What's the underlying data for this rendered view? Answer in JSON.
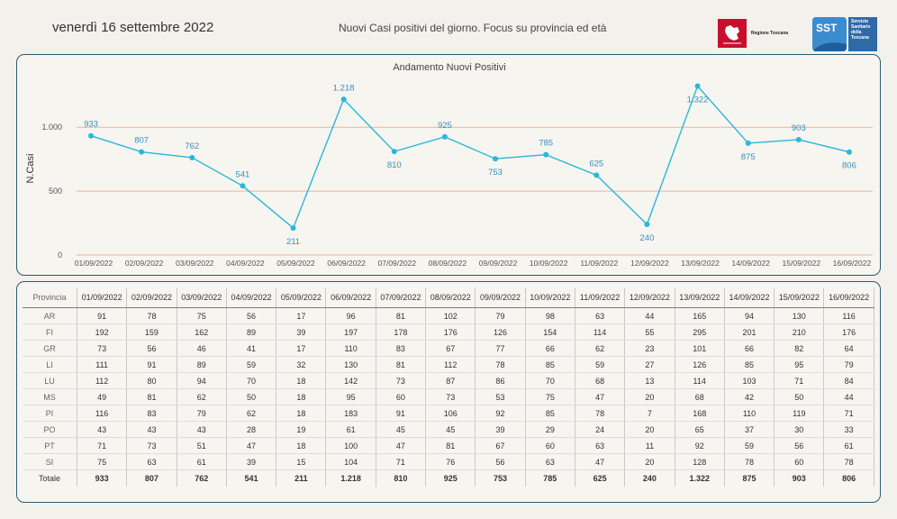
{
  "header": {
    "date": "venerdì 16 settembre 2022",
    "subtitle": "Nuovi Casi positivi del giorno. Focus su provincia ed età",
    "logo_rt_text": "Regione Toscana",
    "logo_sst_text": "Servizio Sanitario della Toscana",
    "logo_sst_mark": "SST"
  },
  "chart_data": {
    "type": "line",
    "title": "Andamento Nuovi Positivi",
    "ylabel": "N.Casi",
    "xlabel": "",
    "ylim": [
      0,
      1400
    ],
    "yticks": [
      0,
      500,
      1000
    ],
    "ytick_labels": [
      "0",
      "500",
      "1.000"
    ],
    "grid": true,
    "categories": [
      "01/09/2022",
      "02/09/2022",
      "03/09/2022",
      "04/09/2022",
      "05/09/2022",
      "06/09/2022",
      "07/09/2022",
      "08/09/2022",
      "09/09/2022",
      "10/09/2022",
      "11/09/2022",
      "12/09/2022",
      "13/09/2022",
      "14/09/2022",
      "15/09/2022",
      "16/09/2022"
    ],
    "values": [
      933,
      807,
      762,
      541,
      211,
      1218,
      810,
      925,
      753,
      785,
      625,
      240,
      1322,
      875,
      903,
      806
    ],
    "data_labels": [
      "933",
      "807",
      "762",
      "541",
      "211",
      "1.218",
      "810",
      "925",
      "753",
      "785",
      "625",
      "240",
      "1.322",
      "875",
      "903",
      "806"
    ],
    "label_positions": [
      "above",
      "above",
      "above",
      "above",
      "below",
      "above",
      "below",
      "above",
      "below",
      "above",
      "above",
      "below",
      "below",
      "below",
      "above",
      "below"
    ],
    "line_color": "#2ab7d8",
    "label_color": "#3a8fc0",
    "grid_color": "#e2b89a"
  },
  "table": {
    "header_label": "Provincia",
    "dates": [
      "01/09/2022",
      "02/09/2022",
      "03/09/2022",
      "04/09/2022",
      "05/09/2022",
      "06/09/2022",
      "07/09/2022",
      "08/09/2022",
      "09/09/2022",
      "10/09/2022",
      "11/09/2022",
      "12/09/2022",
      "13/09/2022",
      "14/09/2022",
      "15/09/2022",
      "16/09/2022"
    ],
    "rows": [
      {
        "prov": "AR",
        "values": [
          "91",
          "78",
          "75",
          "56",
          "17",
          "96",
          "81",
          "102",
          "79",
          "98",
          "63",
          "44",
          "165",
          "94",
          "130",
          "116"
        ]
      },
      {
        "prov": "FI",
        "values": [
          "192",
          "159",
          "162",
          "89",
          "39",
          "197",
          "178",
          "176",
          "126",
          "154",
          "114",
          "55",
          "295",
          "201",
          "210",
          "176"
        ]
      },
      {
        "prov": "GR",
        "values": [
          "73",
          "56",
          "46",
          "41",
          "17",
          "110",
          "83",
          "67",
          "77",
          "66",
          "62",
          "23",
          "101",
          "66",
          "82",
          "64"
        ]
      },
      {
        "prov": "LI",
        "values": [
          "111",
          "91",
          "89",
          "59",
          "32",
          "130",
          "81",
          "112",
          "78",
          "85",
          "59",
          "27",
          "126",
          "85",
          "95",
          "79"
        ]
      },
      {
        "prov": "LU",
        "values": [
          "112",
          "80",
          "94",
          "70",
          "18",
          "142",
          "73",
          "87",
          "86",
          "70",
          "68",
          "13",
          "114",
          "103",
          "71",
          "84"
        ]
      },
      {
        "prov": "MS",
        "values": [
          "49",
          "81",
          "62",
          "50",
          "18",
          "95",
          "60",
          "73",
          "53",
          "75",
          "47",
          "20",
          "68",
          "42",
          "50",
          "44"
        ]
      },
      {
        "prov": "PI",
        "values": [
          "116",
          "83",
          "79",
          "62",
          "18",
          "183",
          "91",
          "106",
          "92",
          "85",
          "78",
          "7",
          "168",
          "110",
          "119",
          "71"
        ]
      },
      {
        "prov": "PO",
        "values": [
          "43",
          "43",
          "43",
          "28",
          "19",
          "61",
          "45",
          "45",
          "39",
          "29",
          "24",
          "20",
          "65",
          "37",
          "30",
          "33"
        ]
      },
      {
        "prov": "PT",
        "values": [
          "71",
          "73",
          "51",
          "47",
          "18",
          "100",
          "47",
          "81",
          "67",
          "60",
          "63",
          "11",
          "92",
          "59",
          "56",
          "61"
        ]
      },
      {
        "prov": "SI",
        "values": [
          "75",
          "63",
          "61",
          "39",
          "15",
          "104",
          "71",
          "76",
          "56",
          "63",
          "47",
          "20",
          "128",
          "78",
          "60",
          "78"
        ]
      }
    ],
    "total": {
      "prov": "Totale",
      "values": [
        "933",
        "807",
        "762",
        "541",
        "211",
        "1.218",
        "810",
        "925",
        "753",
        "785",
        "625",
        "240",
        "1.322",
        "875",
        "903",
        "806"
      ]
    }
  }
}
